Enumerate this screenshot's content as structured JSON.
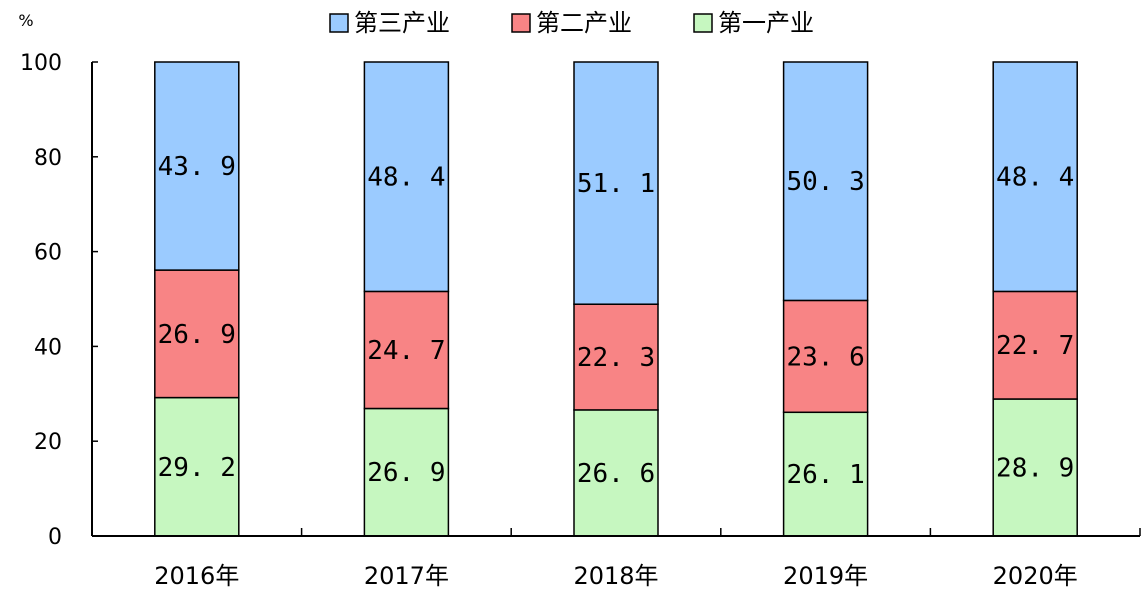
{
  "chart_data": {
    "type": "bar",
    "stacked": true,
    "y_unit": "%",
    "ylim": [
      0,
      100
    ],
    "yticks": [
      0,
      20,
      40,
      60,
      80,
      100
    ],
    "categories": [
      "2016年",
      "2017年",
      "2018年",
      "2019年",
      "2020年"
    ],
    "series": [
      {
        "name": "第一产业",
        "color": "#c6f7c0",
        "values": [
          29.2,
          26.9,
          26.6,
          26.1,
          28.9
        ]
      },
      {
        "name": "第二产业",
        "color": "#f88485",
        "values": [
          26.9,
          24.7,
          22.3,
          23.6,
          22.7
        ]
      },
      {
        "name": "第三产业",
        "color": "#9bcbff",
        "values": [
          43.9,
          48.4,
          51.1,
          50.3,
          48.4
        ]
      }
    ],
    "legend": {
      "position": "top",
      "order": [
        "第三产业",
        "第二产业",
        "第一产业"
      ]
    },
    "data_label_display": {
      "第一产业": [
        "29. 2",
        "26. 9",
        "26. 6",
        "26. 1",
        "28. 9"
      ],
      "第二产业": [
        "26. 9",
        "24. 7",
        "22. 3",
        "23. 6",
        "22. 7"
      ],
      "第三产业": [
        "43. 9",
        "48. 4",
        "51. 1",
        "50. 3",
        "48. 4"
      ]
    },
    "grid": false
  }
}
